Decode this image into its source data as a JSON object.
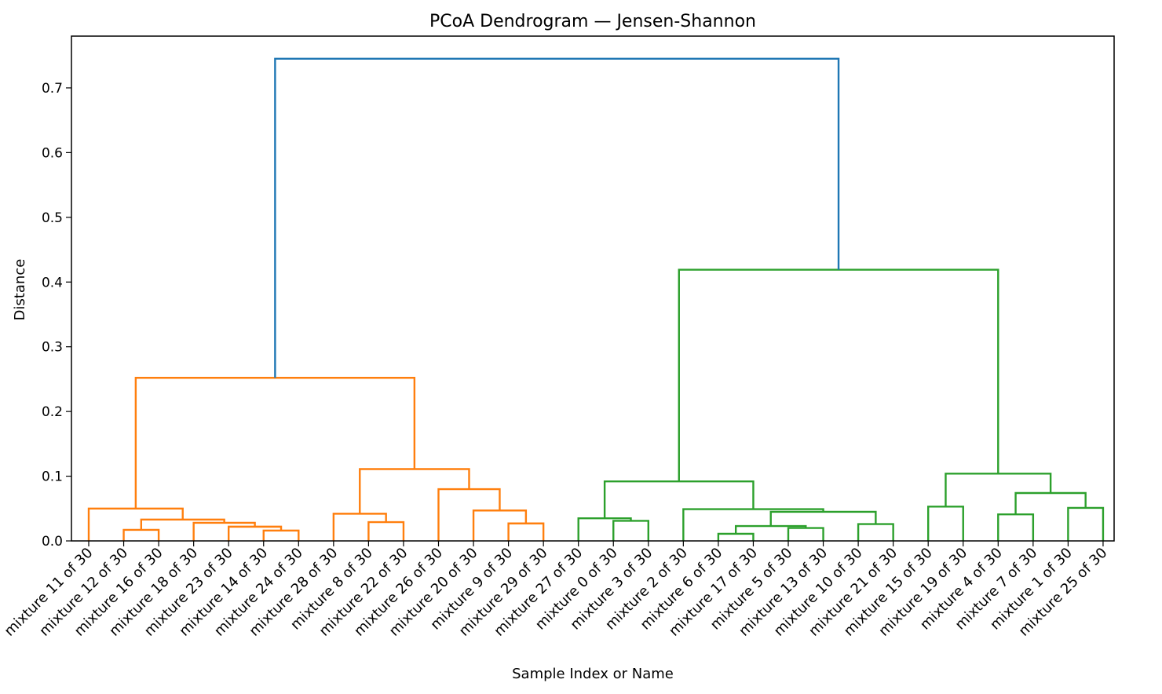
{
  "chart_data": {
    "type": "dendrogram",
    "title": "PCoA Dendrogram — Jensen-Shannon",
    "xlabel": "Sample Index or Name",
    "ylabel": "Distance",
    "ylim": [
      0,
      0.78
    ],
    "yticks": [
      0.0,
      0.1,
      0.2,
      0.3,
      0.4,
      0.5,
      0.6,
      0.7
    ],
    "ytick_labels": [
      "0.0",
      "0.1",
      "0.2",
      "0.3",
      "0.4",
      "0.5",
      "0.6",
      "0.7"
    ],
    "grid": false,
    "colors": {
      "orange": "#ff7f0e",
      "green": "#2ca02c",
      "blue": "#1f77b4"
    },
    "leaves": [
      "mixture 11 of 30",
      "mixture 12 of 30",
      "mixture 16 of 30",
      "mixture 18 of 30",
      "mixture 23 of 30",
      "mixture 14 of 30",
      "mixture 24 of 30",
      "mixture 28 of 30",
      "mixture 8 of 30",
      "mixture 22 of 30",
      "mixture 26 of 30",
      "mixture 20 of 30",
      "mixture 9 of 30",
      "mixture 29 of 30",
      "mixture 27 of 30",
      "mixture 0 of 30",
      "mixture 3 of 30",
      "mixture 2 of 30",
      "mixture 6 of 30",
      "mixture 17 of 30",
      "mixture 5 of 30",
      "mixture 13 of 30",
      "mixture 10 of 30",
      "mixture 21 of 30",
      "mixture 15 of 30",
      "mixture 19 of 30",
      "mixture 4 of 30",
      "mixture 7 of 30",
      "mixture 1 of 30",
      "mixture 25 of 30"
    ],
    "links": [
      {
        "x": [
          1,
          2
        ],
        "h": 0.017,
        "c": "orange"
      },
      {
        "x": [
          5,
          6
        ],
        "h": 0.016,
        "c": "orange"
      },
      {
        "x": [
          4,
          5.5
        ],
        "h": 0.022,
        "c": "orange"
      },
      {
        "x": [
          3,
          4.75
        ],
        "h": 0.028,
        "c": "orange"
      },
      {
        "x": [
          1.5,
          3.875
        ],
        "h": 0.033,
        "c": "orange"
      },
      {
        "x": [
          0,
          2.6875
        ],
        "h": 0.05,
        "c": "orange"
      },
      {
        "x": [
          8,
          9
        ],
        "h": 0.029,
        "c": "orange"
      },
      {
        "x": [
          7,
          8.5
        ],
        "h": 0.042,
        "c": "orange"
      },
      {
        "x": [
          12,
          13
        ],
        "h": 0.027,
        "c": "orange"
      },
      {
        "x": [
          11,
          12.5
        ],
        "h": 0.047,
        "c": "orange"
      },
      {
        "x": [
          10,
          11.75
        ],
        "h": 0.08,
        "c": "orange"
      },
      {
        "x": [
          7.75,
          10.875
        ],
        "h": 0.111,
        "c": "orange"
      },
      {
        "x": [
          1.34375,
          9.3125
        ],
        "h": 0.252,
        "c": "orange"
      },
      {
        "x": [
          15,
          16
        ],
        "h": 0.031,
        "c": "green"
      },
      {
        "x": [
          14,
          15.5
        ],
        "h": 0.035,
        "c": "green"
      },
      {
        "x": [
          18,
          19
        ],
        "h": 0.011,
        "c": "green"
      },
      {
        "x": [
          20,
          21
        ],
        "h": 0.02,
        "c": "green"
      },
      {
        "x": [
          18.5,
          20.5
        ],
        "h": 0.023,
        "c": "green"
      },
      {
        "x": [
          22,
          23
        ],
        "h": 0.026,
        "c": "green"
      },
      {
        "x": [
          19.5,
          22.5
        ],
        "h": 0.045,
        "c": "green"
      },
      {
        "x": [
          17,
          21
        ],
        "h": 0.049,
        "c": "green"
      },
      {
        "x": [
          14.75,
          19
        ],
        "h": 0.092,
        "c": "green"
      },
      {
        "x": [
          24,
          25
        ],
        "h": 0.053,
        "c": "green"
      },
      {
        "x": [
          26,
          27
        ],
        "h": 0.041,
        "c": "green"
      },
      {
        "x": [
          28,
          29
        ],
        "h": 0.051,
        "c": "green"
      },
      {
        "x": [
          26.5,
          28.5
        ],
        "h": 0.074,
        "c": "green"
      },
      {
        "x": [
          24.5,
          27.5
        ],
        "h": 0.104,
        "c": "green"
      },
      {
        "x": [
          16.875,
          26
        ],
        "h": 0.419,
        "c": "green"
      },
      {
        "x": [
          5.328125,
          21.4375
        ],
        "h": 0.745,
        "c": "blue"
      }
    ],
    "link_children": [
      [
        0,
        0
      ],
      [
        0,
        0
      ],
      [
        0,
        0.016
      ],
      [
        0,
        0.022
      ],
      [
        0.017,
        0.028
      ],
      [
        0,
        0.033
      ],
      [
        0,
        0
      ],
      [
        0,
        0.029
      ],
      [
        0,
        0
      ],
      [
        0,
        0.027
      ],
      [
        0,
        0.047
      ],
      [
        0.042,
        0.08
      ],
      [
        0.05,
        0.111
      ],
      [
        0,
        0
      ],
      [
        0,
        0.031
      ],
      [
        0,
        0
      ],
      [
        0,
        0
      ],
      [
        0.011,
        0.02
      ],
      [
        0,
        0
      ],
      [
        0.023,
        0.026
      ],
      [
        0,
        0.045
      ],
      [
        0.035,
        0.049
      ],
      [
        0,
        0
      ],
      [
        0,
        0
      ],
      [
        0,
        0
      ],
      [
        0.041,
        0.051
      ],
      [
        0.053,
        0.074
      ],
      [
        0.092,
        0.104
      ],
      [
        0.252,
        0.419
      ]
    ]
  }
}
